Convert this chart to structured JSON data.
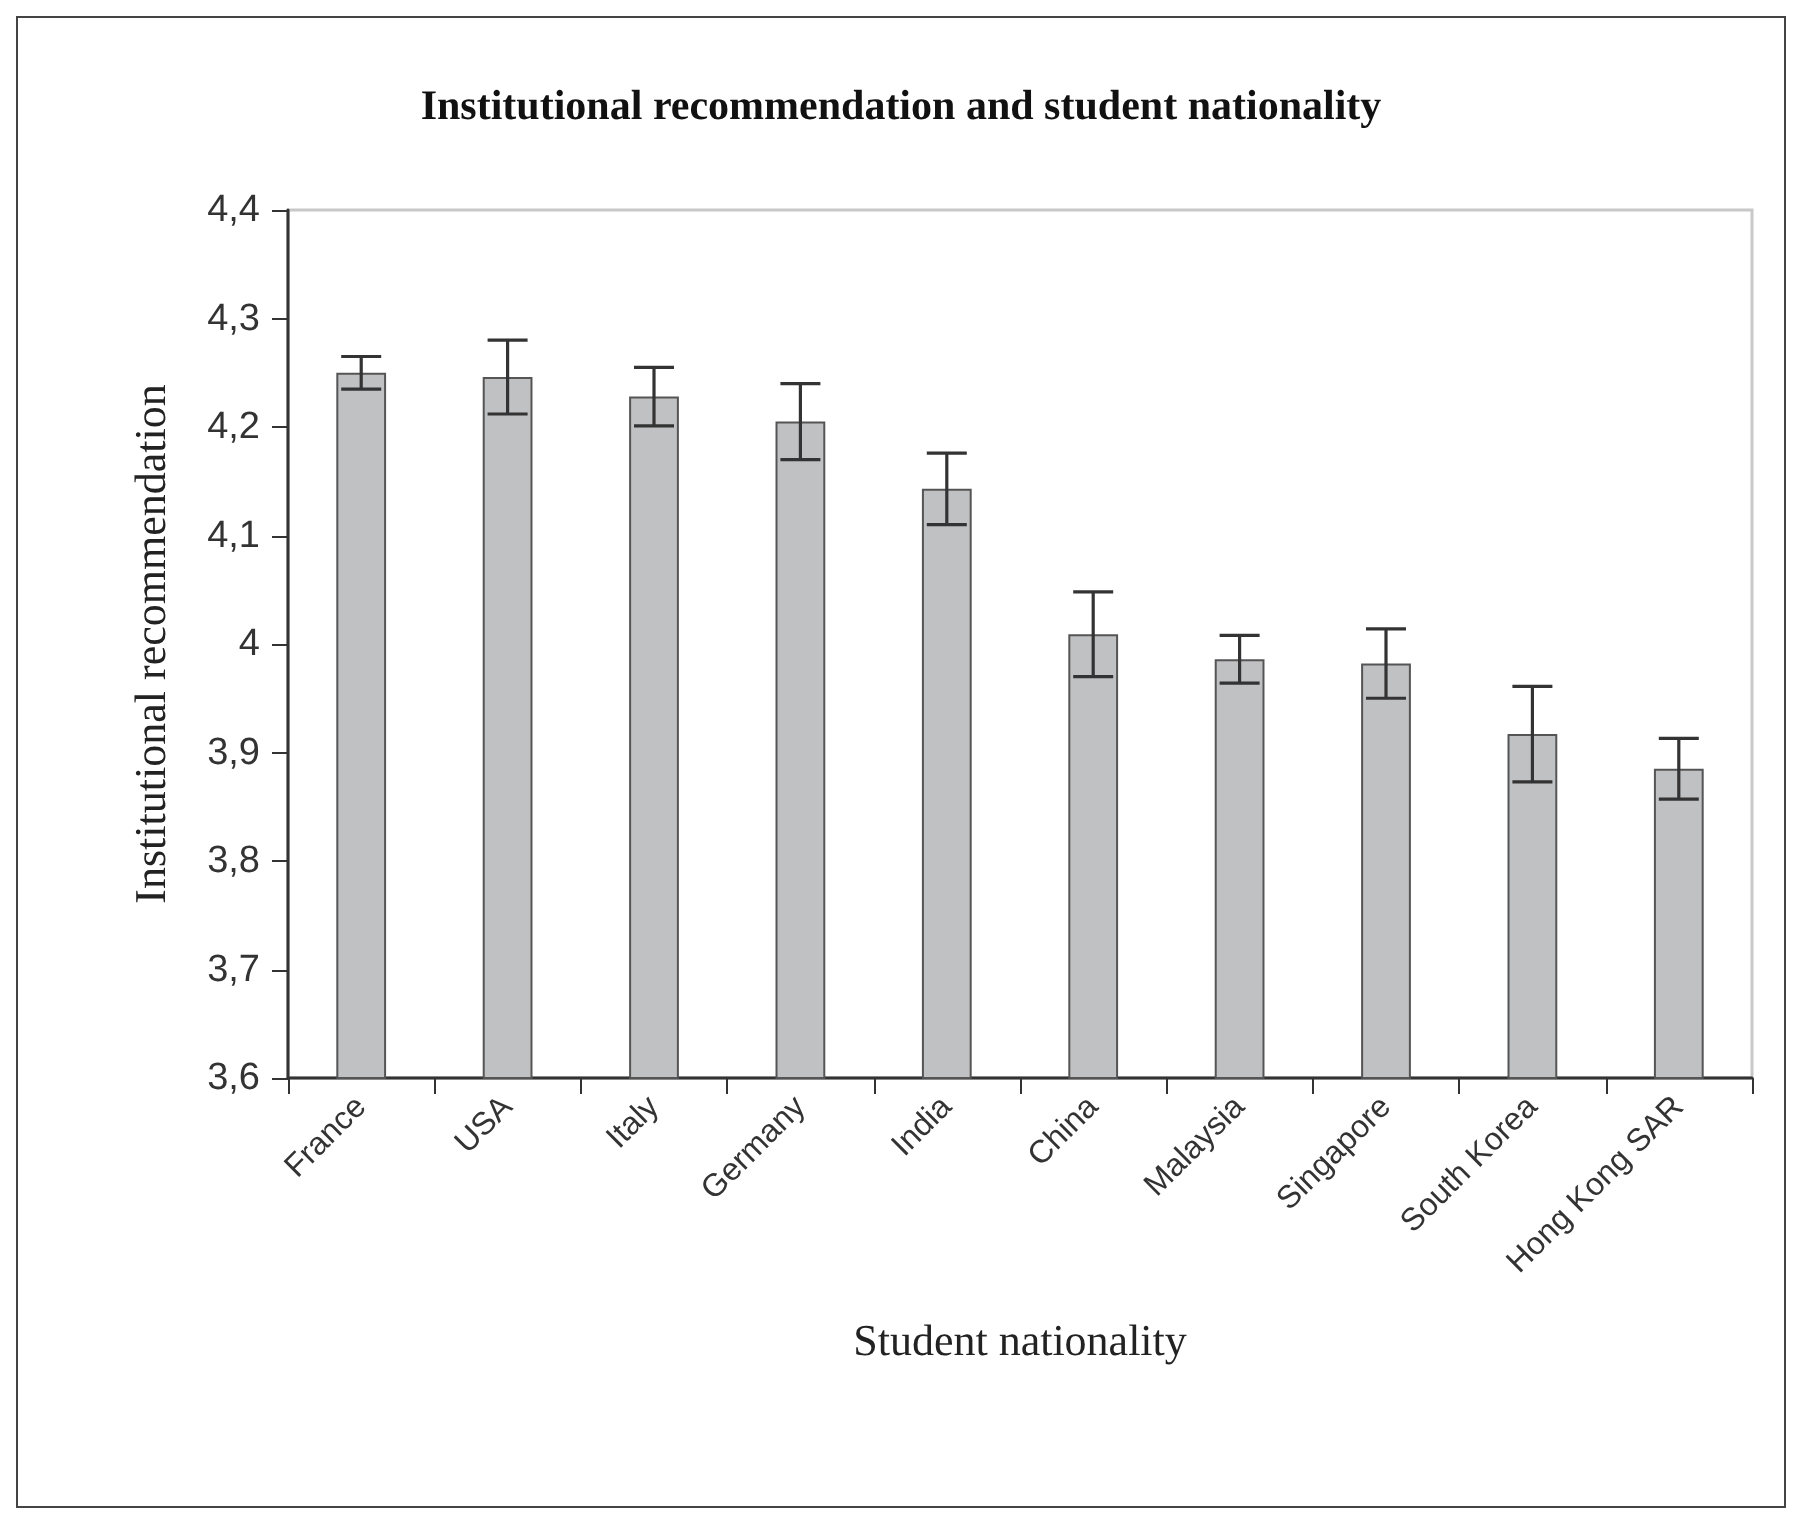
{
  "chart_data": {
    "type": "bar",
    "title": "Institutional recommendation and student nationality",
    "xlabel": "Student nationality",
    "ylabel": "Institutional recommendation",
    "categories": [
      "France",
      "USA",
      "Italy",
      "Germany",
      "India",
      "China",
      "Malaysia",
      "Singapore",
      "South Korea",
      "Hong Kong SAR"
    ],
    "values": [
      4.25,
      4.246,
      4.228,
      4.205,
      4.143,
      4.009,
      3.986,
      3.982,
      3.917,
      3.885
    ],
    "errors": [
      0.015,
      0.034,
      0.027,
      0.035,
      0.033,
      0.039,
      0.022,
      0.032,
      0.044,
      0.028
    ],
    "color": "#c0c1c3",
    "ylim": [
      3.6,
      4.4
    ],
    "yticks": [
      {
        "value": 3.6,
        "label": "3,6"
      },
      {
        "value": 3.7,
        "label": "3,7"
      },
      {
        "value": 3.8,
        "label": "3,8"
      },
      {
        "value": 3.9,
        "label": "3,9"
      },
      {
        "value": 4,
        "label": "4"
      },
      {
        "value": 4.1,
        "label": "4,1"
      },
      {
        "value": 4.2,
        "label": "4,2"
      },
      {
        "value": 4.3,
        "label": "4,3"
      },
      {
        "value": 4.4,
        "label": "4,4"
      }
    ],
    "grid": false
  }
}
